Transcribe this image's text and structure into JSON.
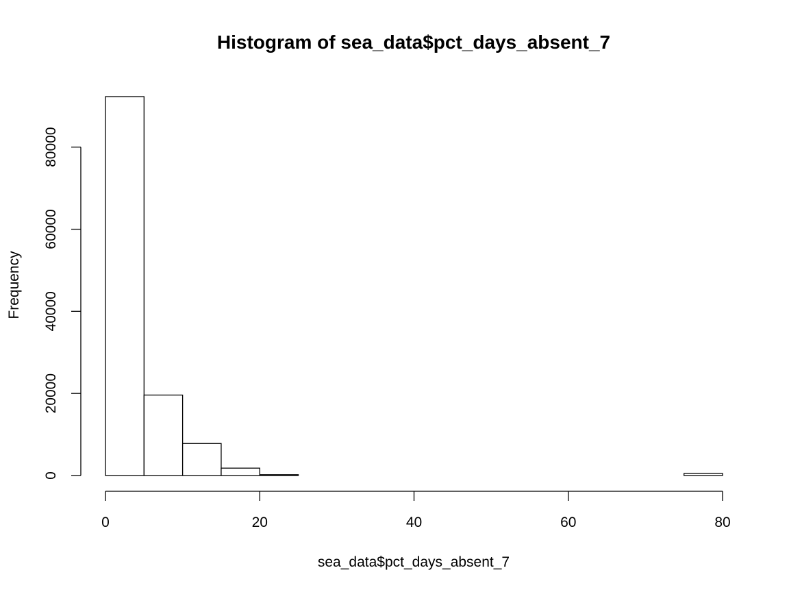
{
  "chart_data": {
    "type": "bar",
    "title": "Histogram of sea_data$pct_days_absent_7",
    "xlabel": "sea_data$pct_days_absent_7",
    "ylabel": "Frequency",
    "bins": [
      {
        "start": 0,
        "end": 5,
        "count": 92300
      },
      {
        "start": 5,
        "end": 10,
        "count": 19600
      },
      {
        "start": 10,
        "end": 15,
        "count": 7800
      },
      {
        "start": 15,
        "end": 20,
        "count": 1800
      },
      {
        "start": 20,
        "end": 25,
        "count": 200
      },
      {
        "start": 25,
        "end": 30,
        "count": 0
      },
      {
        "start": 30,
        "end": 35,
        "count": 0
      },
      {
        "start": 35,
        "end": 40,
        "count": 0
      },
      {
        "start": 40,
        "end": 45,
        "count": 0
      },
      {
        "start": 45,
        "end": 50,
        "count": 0
      },
      {
        "start": 50,
        "end": 55,
        "count": 0
      },
      {
        "start": 55,
        "end": 60,
        "count": 0
      },
      {
        "start": 60,
        "end": 65,
        "count": 0
      },
      {
        "start": 65,
        "end": 70,
        "count": 0
      },
      {
        "start": 70,
        "end": 75,
        "count": 0
      },
      {
        "start": 75,
        "end": 80,
        "count": 500
      }
    ],
    "xlim": [
      0,
      80
    ],
    "ylim": [
      0,
      92300
    ],
    "x_ticks": [
      0,
      20,
      40,
      60,
      80
    ],
    "y_ticks": [
      0,
      20000,
      40000,
      60000,
      80000
    ],
    "grid": false,
    "colors": {
      "bar_fill": "#ffffff",
      "bar_stroke": "#000000",
      "background": "#ffffff"
    }
  }
}
